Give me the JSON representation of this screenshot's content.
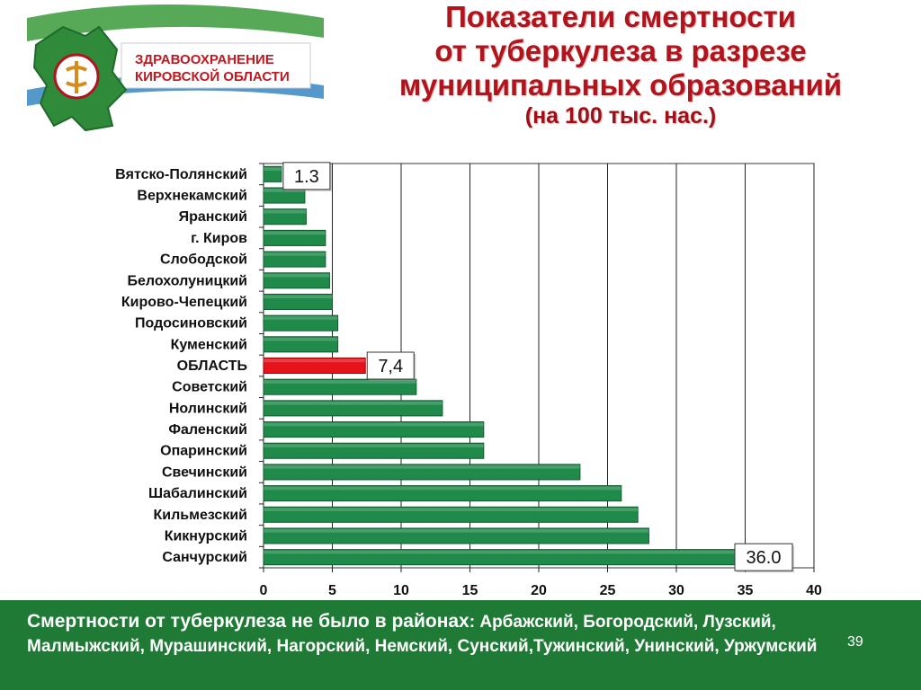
{
  "header": {
    "logo_text_line1": "ЗДРАВООХРАНЕНИЕ",
    "logo_text_line2": "КИРОВСКОЙ ОБЛАСТИ",
    "title_line1": "Показатели смертности",
    "title_line2": "от туберкулеза в разрезе",
    "title_line3": "муниципальных образований",
    "subtitle": "(на 100 тыс. нас.)"
  },
  "colors": {
    "bar": "#1f8a4a",
    "highlight_bar": "#e8141c",
    "title": "#b0141c",
    "footer_bg": "#1f7a35"
  },
  "chart_data": {
    "type": "bar",
    "orientation": "horizontal",
    "categories": [
      "Вятско-Полянский",
      "Верхнекамский",
      "Яранский",
      "г. Киров",
      "Слободской",
      "Белохолуницкий",
      "Кирово-Чепецкий",
      "Подосиновский",
      "Куменский",
      "ОБЛАСТЬ",
      "Советский",
      "Нолинский",
      "Фаленский",
      "Опаринский",
      "Свечинский",
      "Шабалинский",
      "Кильмезский",
      "Кикнурский",
      "Санчурский"
    ],
    "values": [
      1.3,
      3.0,
      3.1,
      4.5,
      4.5,
      4.8,
      5.0,
      5.4,
      5.4,
      7.4,
      11.1,
      13.0,
      16.0,
      16.0,
      23.0,
      26.0,
      27.2,
      28.0,
      36.0
    ],
    "highlight_category": "ОБЛАСТЬ",
    "xlim": [
      0,
      40
    ],
    "x_ticks": [
      "0",
      "5",
      "10",
      "15",
      "20",
      "25",
      "30",
      "35",
      "40"
    ],
    "annotations": [
      {
        "category": "Вятско-Полянский",
        "text": "1.3"
      },
      {
        "category": "ОБЛАСТЬ",
        "text": "7,4"
      },
      {
        "category": "Санчурский",
        "text": "36.0"
      }
    ],
    "grid": true
  },
  "footer": {
    "lead": "Смертности от туберкулеза не  было в районах",
    "rest": ": Арбажский, Богородский, Лузский, Малмыжский, Мурашинский, Нагорский, Немский, Сунский,Тужинский, Унинский, Уржумский",
    "page_number": "39"
  }
}
